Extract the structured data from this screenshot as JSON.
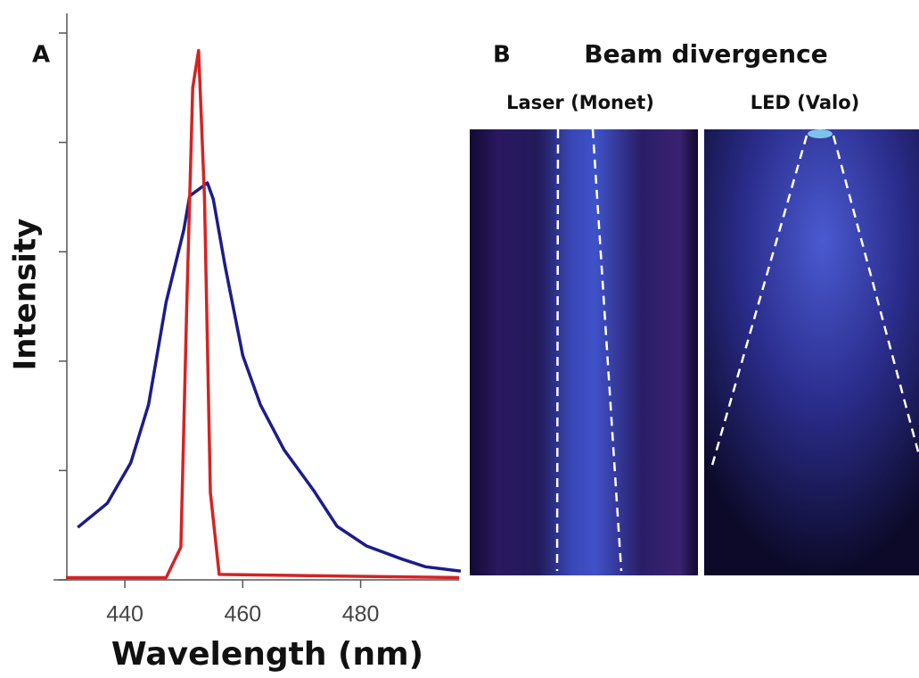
{
  "chart_data": {
    "type": "line",
    "panel_label": "A",
    "x_label": "Wavelength (nm)",
    "y_label": "Intensity",
    "xlim": [
      430,
      496.7
    ],
    "xticks": [
      440,
      460,
      480
    ],
    "ylim": [
      0,
      5
    ],
    "yticks": [
      0,
      1,
      2,
      3,
      4,
      5
    ],
    "series": [
      {
        "color": "#1c1c8a",
        "x": [
          432,
          437,
          441,
          444,
          447,
          450,
          451,
          454,
          455,
          457,
          460,
          463,
          467,
          472,
          476,
          481,
          487,
          491,
          497
        ],
        "values": [
          0.48,
          0.7,
          1.07,
          1.6,
          2.54,
          3.2,
          3.51,
          3.63,
          3.48,
          2.87,
          2.05,
          1.6,
          1.19,
          0.82,
          0.49,
          0.31,
          0.19,
          0.12,
          0.08
        ]
      },
      {
        "color": "#d42323",
        "x": [
          430,
          447,
          449.5,
          450.5,
          451.5,
          452.5,
          453.5,
          454.5,
          456,
          496.7
        ],
        "values": [
          0.02,
          0.02,
          0.3,
          2.5,
          4.5,
          4.84,
          3.5,
          0.8,
          0.05,
          0.02
        ]
      }
    ]
  },
  "panel_b": {
    "label": "B",
    "title": "Beam divergence",
    "images": [
      "Laser (Monet)",
      "LED (Valo)"
    ]
  }
}
